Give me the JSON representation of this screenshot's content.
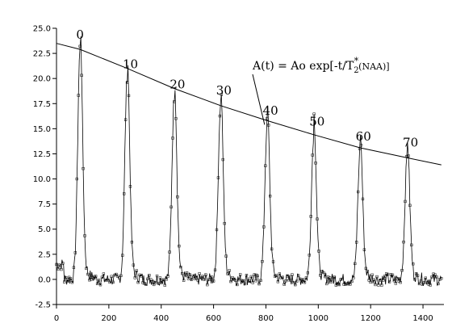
{
  "chart_data": {
    "type": "line",
    "title": "",
    "xlabel": "",
    "ylabel": "",
    "xlim": [
      0,
      1480
    ],
    "ylim": [
      -2.5,
      25.0
    ],
    "x_ticks": [
      0,
      200,
      400,
      600,
      800,
      1000,
      1200,
      1400
    ],
    "x_tick_labels": [
      "0",
      "200",
      "400",
      "600",
      "800",
      "1000",
      "1200",
      "1400"
    ],
    "y_ticks": [
      -2.5,
      0.0,
      2.5,
      5.0,
      7.5,
      10.0,
      12.5,
      15.0,
      17.5,
      20.0,
      22.5,
      25.0
    ],
    "y_tick_labels": [
      "-2.5",
      "0.0",
      "2.5",
      "5.0",
      "7.5",
      "10.0",
      "12.5",
      "15.0",
      "17.5",
      "20.0",
      "22.5",
      "25.0"
    ],
    "grid": false,
    "baseline": 0.0,
    "peak_width": 9,
    "peaks": [
      {
        "label": "0",
        "x": 90,
        "y": 23.0
      },
      {
        "label": "10",
        "x": 270,
        "y": 20.2
      },
      {
        "label": "20",
        "x": 450,
        "y": 18.2
      },
      {
        "label": "30",
        "x": 627,
        "y": 17.6
      },
      {
        "label": "40",
        "x": 805,
        "y": 15.6
      },
      {
        "label": "50",
        "x": 983,
        "y": 14.5
      },
      {
        "label": "60",
        "x": 1160,
        "y": 13.0
      },
      {
        "label": "70",
        "x": 1340,
        "y": 12.4
      }
    ],
    "decay_fit": {
      "label": "A(t) = Ao exp[-t/T",
      "sub": "2",
      "sup": "*",
      "tail": "(NAA)]",
      "x": [
        0,
        90,
        270,
        450,
        627,
        805,
        983,
        1160,
        1340,
        1470
      ],
      "y": [
        23.5,
        22.9,
        21.0,
        19.0,
        17.3,
        15.8,
        14.4,
        13.1,
        12.1,
        11.4
      ]
    }
  }
}
